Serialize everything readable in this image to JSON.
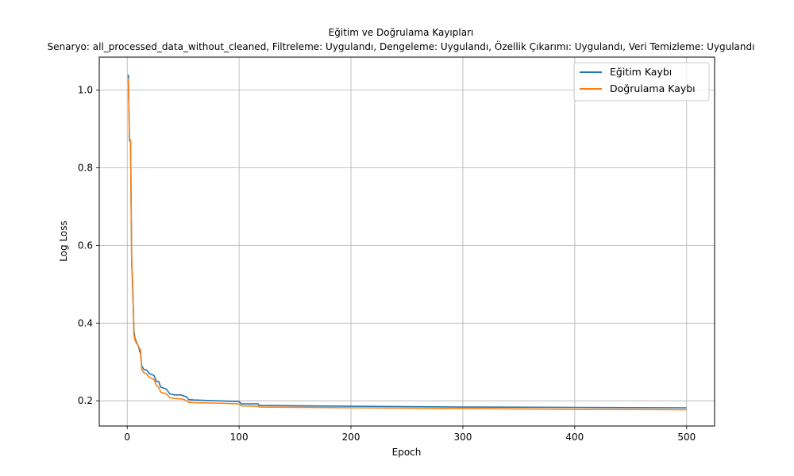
{
  "chart_data": {
    "type": "line",
    "title": "Eğitim ve Doğrulama Kayıpları",
    "subtitle": "Senaryo: all_processed_data_without_cleaned, Filtreleme: Uygulandı, Dengeleme: Uygulandı, Özellik Çıkarımı: Uygulandı, Veri Temizleme: Uygulandı",
    "xlabel": "Epoch",
    "ylabel": "Log Loss",
    "xlim": [
      -25,
      525
    ],
    "ylim": [
      0.135,
      1.085
    ],
    "xticks": [
      0,
      100,
      200,
      300,
      400,
      500
    ],
    "yticks": [
      0.2,
      0.4,
      0.6,
      0.8,
      1.0
    ],
    "xtick_labels": [
      "0",
      "100",
      "200",
      "300",
      "400",
      "500"
    ],
    "ytick_labels": [
      "0.2",
      "0.4",
      "0.6",
      "0.8",
      "1.0"
    ],
    "grid": true,
    "legend_position": "upper-right",
    "series": [
      {
        "name": "Eğitim Kaybı",
        "color": "#1f77b4",
        "points": [
          [
            1,
            1.04
          ],
          [
            2,
            0.87
          ],
          [
            3,
            0.87
          ],
          [
            4,
            0.56
          ],
          [
            5,
            0.48
          ],
          [
            6,
            0.38
          ],
          [
            7,
            0.36
          ],
          [
            10,
            0.34
          ],
          [
            12,
            0.32
          ],
          [
            13,
            0.29
          ],
          [
            15,
            0.28
          ],
          [
            17,
            0.28
          ],
          [
            20,
            0.27
          ],
          [
            24,
            0.265
          ],
          [
            26,
            0.25
          ],
          [
            28,
            0.25
          ],
          [
            30,
            0.235
          ],
          [
            35,
            0.23
          ],
          [
            38,
            0.218
          ],
          [
            42,
            0.215
          ],
          [
            48,
            0.215
          ],
          [
            51,
            0.212
          ],
          [
            53,
            0.21
          ],
          [
            55,
            0.203
          ],
          [
            60,
            0.202
          ],
          [
            80,
            0.2
          ],
          [
            100,
            0.198
          ],
          [
            102,
            0.192
          ],
          [
            117,
            0.192
          ],
          [
            118,
            0.188
          ],
          [
            200,
            0.186
          ],
          [
            300,
            0.184
          ],
          [
            400,
            0.183
          ],
          [
            500,
            0.182
          ]
        ]
      },
      {
        "name": "Doğrulama Kaybı",
        "color": "#ff7f0e",
        "points": [
          [
            1,
            1.03
          ],
          [
            2,
            0.88
          ],
          [
            3,
            0.86
          ],
          [
            4,
            0.55
          ],
          [
            5,
            0.5
          ],
          [
            6,
            0.37
          ],
          [
            7,
            0.355
          ],
          [
            10,
            0.34
          ],
          [
            12,
            0.33
          ],
          [
            13,
            0.28
          ],
          [
            15,
            0.272
          ],
          [
            17,
            0.27
          ],
          [
            20,
            0.26
          ],
          [
            24,
            0.255
          ],
          [
            26,
            0.24
          ],
          [
            28,
            0.235
          ],
          [
            30,
            0.222
          ],
          [
            35,
            0.218
          ],
          [
            38,
            0.208
          ],
          [
            42,
            0.206
          ],
          [
            48,
            0.205
          ],
          [
            51,
            0.203
          ],
          [
            53,
            0.2
          ],
          [
            55,
            0.196
          ],
          [
            60,
            0.195
          ],
          [
            80,
            0.194
          ],
          [
            100,
            0.192
          ],
          [
            102,
            0.187
          ],
          [
            117,
            0.186
          ],
          [
            118,
            0.184
          ],
          [
            200,
            0.182
          ],
          [
            300,
            0.18
          ],
          [
            400,
            0.178
          ],
          [
            500,
            0.177
          ]
        ]
      }
    ]
  }
}
